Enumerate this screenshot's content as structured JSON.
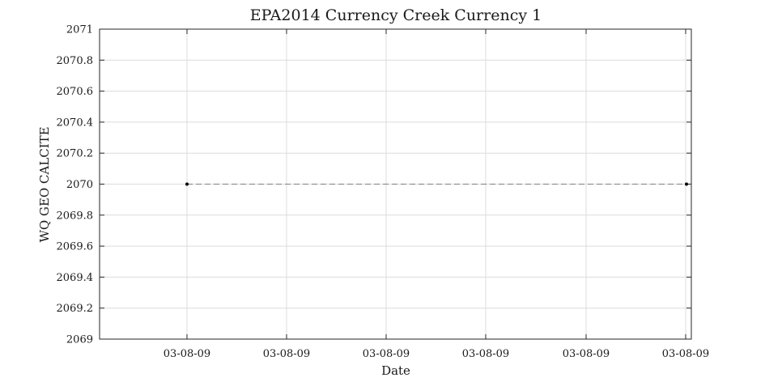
{
  "chart_data": {
    "type": "line",
    "title": "EPA2014 Currency Creek Currency 1",
    "xlabel": "Date",
    "ylabel": "WQ GEO CALCITE",
    "ylim": [
      2069,
      2071
    ],
    "y_ticks": [
      "2069",
      "2069.2",
      "2069.4",
      "2069.6",
      "2069.8",
      "2070",
      "2070.2",
      "2070.4",
      "2070.6",
      "2070.8",
      "2071"
    ],
    "x_tick_labels": [
      "03-08-09",
      "03-08-09",
      "03-08-09",
      "03-08-09",
      "03-08-09",
      "03-08-09"
    ],
    "grid": true,
    "series": [
      {
        "line_style": "dashed",
        "color": "#7f7f7f",
        "marker_color": "#000000",
        "x": [
          "03-08-09",
          "03-08-09"
        ],
        "y": [
          2070,
          2070
        ]
      }
    ]
  }
}
